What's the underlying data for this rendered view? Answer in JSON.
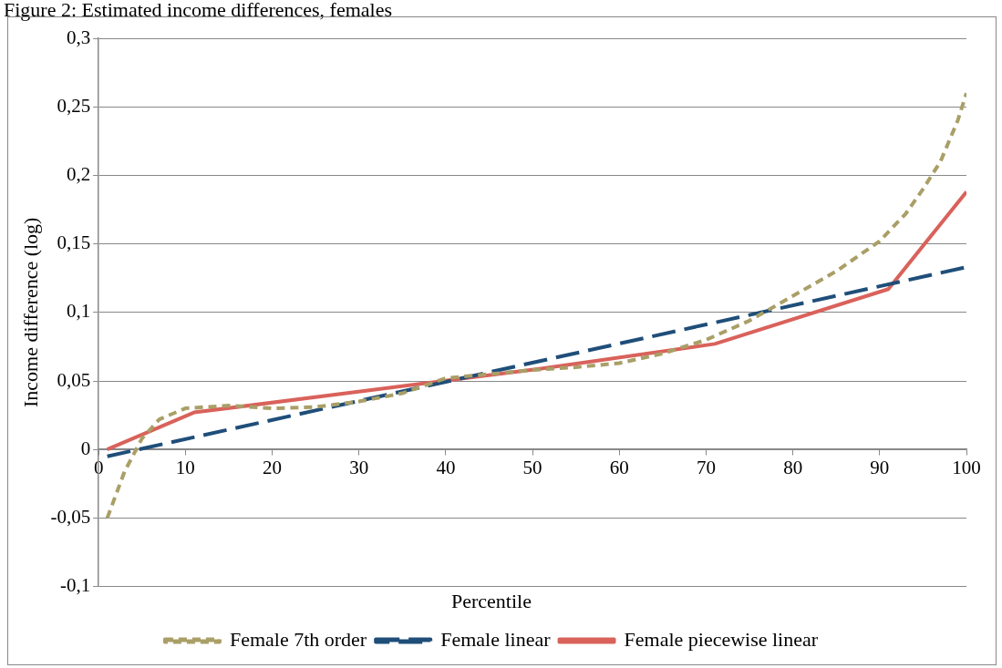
{
  "chart_data": {
    "type": "line",
    "title": "Figure 2: Estimated income differences, females",
    "xlabel": "Percentile",
    "ylabel": "Income difference (log)",
    "xlim": [
      0,
      100
    ],
    "xticks": [
      0,
      10,
      20,
      30,
      40,
      50,
      60,
      70,
      80,
      90,
      100
    ],
    "ylim": [
      -0.1,
      0.3
    ],
    "yticks": [
      {
        "value": -0.1,
        "label": "-0,1"
      },
      {
        "value": -0.05,
        "label": "-0,05"
      },
      {
        "value": 0,
        "label": "0"
      },
      {
        "value": 0.05,
        "label": "0,05"
      },
      {
        "value": 0.1,
        "label": "0,1"
      },
      {
        "value": 0.15,
        "label": "0,15"
      },
      {
        "value": 0.2,
        "label": "0,2"
      },
      {
        "value": 0.25,
        "label": "0,25"
      },
      {
        "value": 0.3,
        "label": "0,3"
      }
    ],
    "grid": "y",
    "legend": "bottom",
    "marker": "none",
    "series": [
      {
        "name": "Female 7th order",
        "color": "#a99f67",
        "line_style": "dashed",
        "x": [
          1,
          3,
          5,
          7,
          10,
          15,
          20,
          25,
          30,
          35,
          40,
          45,
          50,
          55,
          60,
          65,
          70,
          75,
          80,
          85,
          90,
          93,
          95,
          97,
          99,
          100
        ],
        "values": [
          -0.05,
          -0.016,
          0.008,
          0.022,
          0.03,
          0.032,
          0.03,
          0.031,
          0.035,
          0.041,
          0.052,
          0.055,
          0.058,
          0.06,
          0.063,
          0.07,
          0.08,
          0.094,
          0.112,
          0.13,
          0.152,
          0.172,
          0.19,
          0.21,
          0.24,
          0.26
        ]
      },
      {
        "name": "Female linear",
        "color": "#1f4e79",
        "line_style": "dashed",
        "x": [
          1,
          100
        ],
        "values": [
          -0.005,
          0.133
        ]
      },
      {
        "name": "Female piecewise linear",
        "color": "#d9625b",
        "line_style": "solid",
        "x": [
          1,
          11,
          31,
          51,
          71,
          91,
          100
        ],
        "values": [
          0,
          0.027,
          0.043,
          0.059,
          0.077,
          0.117,
          0.188
        ]
      }
    ]
  }
}
